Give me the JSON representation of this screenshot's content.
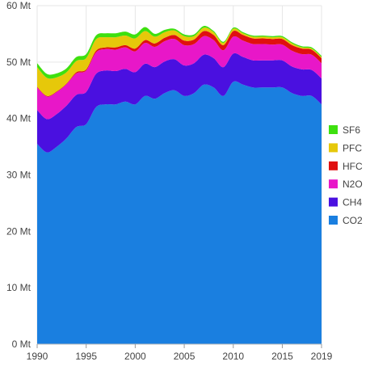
{
  "chart_data": {
    "type": "area",
    "stacked": true,
    "x": [
      1990,
      1991,
      1992,
      1993,
      1994,
      1995,
      1996,
      1997,
      1998,
      1999,
      2000,
      2001,
      2002,
      2003,
      2004,
      2005,
      2006,
      2007,
      2008,
      2009,
      2010,
      2011,
      2012,
      2013,
      2014,
      2015,
      2016,
      2017,
      2018,
      2019
    ],
    "series": [
      {
        "name": "CO2",
        "color": "#1a7fe0",
        "values": [
          35.5,
          34.0,
          35.0,
          36.5,
          38.5,
          39.0,
          42.0,
          42.5,
          42.5,
          43.0,
          42.5,
          44.0,
          43.5,
          44.5,
          45.0,
          44.0,
          44.5,
          46.0,
          45.5,
          44.0,
          46.5,
          46.0,
          45.5,
          45.5,
          45.5,
          45.5,
          44.5,
          44.0,
          44.0,
          42.5
        ]
      },
      {
        "name": "CH4",
        "color": "#4a10e0",
        "values": [
          6.0,
          5.9,
          5.8,
          5.8,
          5.7,
          5.7,
          5.9,
          6.0,
          5.9,
          5.8,
          5.7,
          5.7,
          5.6,
          5.6,
          5.5,
          5.4,
          5.3,
          5.3,
          5.2,
          5.1,
          5.0,
          4.9,
          4.8,
          4.8,
          4.8,
          4.8,
          4.7,
          4.7,
          4.6,
          4.6
        ]
      },
      {
        "name": "N2O",
        "color": "#e817c8",
        "values": [
          4.0,
          4.0,
          3.9,
          3.8,
          3.8,
          3.8,
          3.8,
          3.8,
          3.8,
          3.8,
          3.7,
          3.7,
          3.6,
          3.6,
          3.6,
          3.6,
          3.4,
          3.3,
          3.2,
          3.0,
          3.0,
          2.9,
          2.9,
          2.9,
          2.8,
          2.8,
          2.8,
          2.7,
          2.7,
          2.7
        ]
      },
      {
        "name": "HFC",
        "color": "#e01010",
        "values": [
          0.1,
          0.1,
          0.1,
          0.1,
          0.2,
          0.2,
          0.3,
          0.3,
          0.4,
          0.4,
          0.5,
          0.5,
          0.6,
          0.6,
          0.7,
          0.8,
          0.8,
          0.9,
          0.9,
          0.9,
          1.0,
          1.0,
          1.0,
          1.0,
          1.0,
          1.0,
          1.0,
          1.0,
          0.9,
          0.9
        ]
      },
      {
        "name": "PFC",
        "color": "#e6c80a",
        "values": [
          3.5,
          3.2,
          2.5,
          2.0,
          2.0,
          2.0,
          2.0,
          1.8,
          1.8,
          1.7,
          1.8,
          1.6,
          1.2,
          1.0,
          0.8,
          0.8,
          0.6,
          0.6,
          0.5,
          0.4,
          0.4,
          0.3,
          0.3,
          0.3,
          0.3,
          0.3,
          0.3,
          0.2,
          0.2,
          0.2
        ]
      },
      {
        "name": "SF6",
        "color": "#3ee00f",
        "values": [
          0.7,
          0.7,
          0.7,
          0.7,
          0.7,
          0.7,
          0.7,
          0.7,
          0.7,
          0.7,
          0.7,
          0.7,
          0.5,
          0.4,
          0.3,
          0.3,
          0.3,
          0.3,
          0.2,
          0.2,
          0.2,
          0.2,
          0.2,
          0.2,
          0.2,
          0.2,
          0.2,
          0.2,
          0.2,
          0.2
        ]
      }
    ],
    "legend_order": [
      "SF6",
      "PFC",
      "HFC",
      "N2O",
      "CH4",
      "CO2"
    ],
    "legend_position": "right",
    "ylim": [
      0,
      60
    ],
    "yticks": [
      0,
      10,
      20,
      30,
      40,
      50,
      60
    ],
    "ytick_labels": [
      "0 Mt",
      "10 Mt",
      "20 Mt",
      "30 Mt",
      "40 Mt",
      "50 Mt",
      "60 Mt"
    ],
    "xticks": [
      1990,
      1995,
      2000,
      2005,
      2010,
      2015,
      2019
    ],
    "xtick_labels": [
      "1990",
      "1995",
      "2000",
      "2005",
      "2010",
      "2015",
      "2019"
    ],
    "grid": true,
    "title": "",
    "xlabel": "",
    "ylabel": ""
  }
}
